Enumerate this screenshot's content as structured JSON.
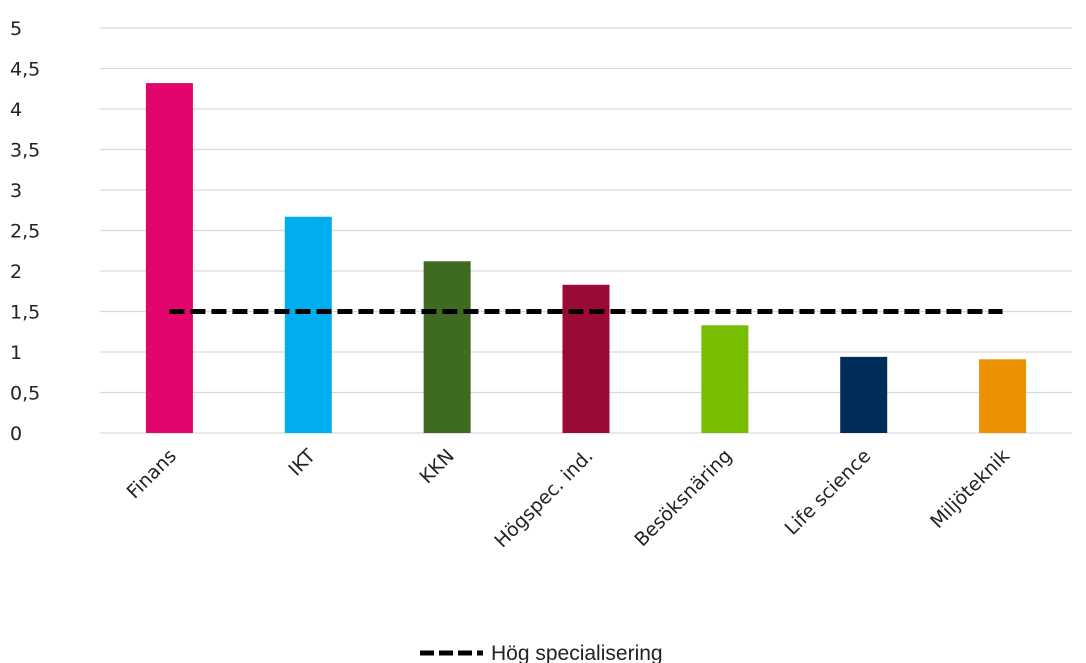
{
  "chart_data": {
    "type": "bar",
    "categories": [
      "Finans",
      "IKT",
      "KKN",
      "Högspec. ind.",
      "Besöksnäring",
      "Life science",
      "Miljöteknik"
    ],
    "values": [
      4.32,
      2.67,
      2.12,
      1.83,
      1.33,
      0.94,
      0.91
    ],
    "bar_colors": [
      "#E2066C",
      "#00AEEF",
      "#3E6B1F",
      "#9B0A35",
      "#78BE00",
      "#002D5A",
      "#EC9200"
    ],
    "reference_line": {
      "name": "Hög specialisering",
      "value": 1.5,
      "style": "dashed",
      "color": "#000000"
    },
    "yticks": [
      "0",
      "0,5",
      "1",
      "1,5",
      "2",
      "2,5",
      "3",
      "3,5",
      "4",
      "4,5",
      "5"
    ],
    "ylim": [
      0,
      5
    ],
    "grid": true,
    "legend_position": "bottom"
  }
}
